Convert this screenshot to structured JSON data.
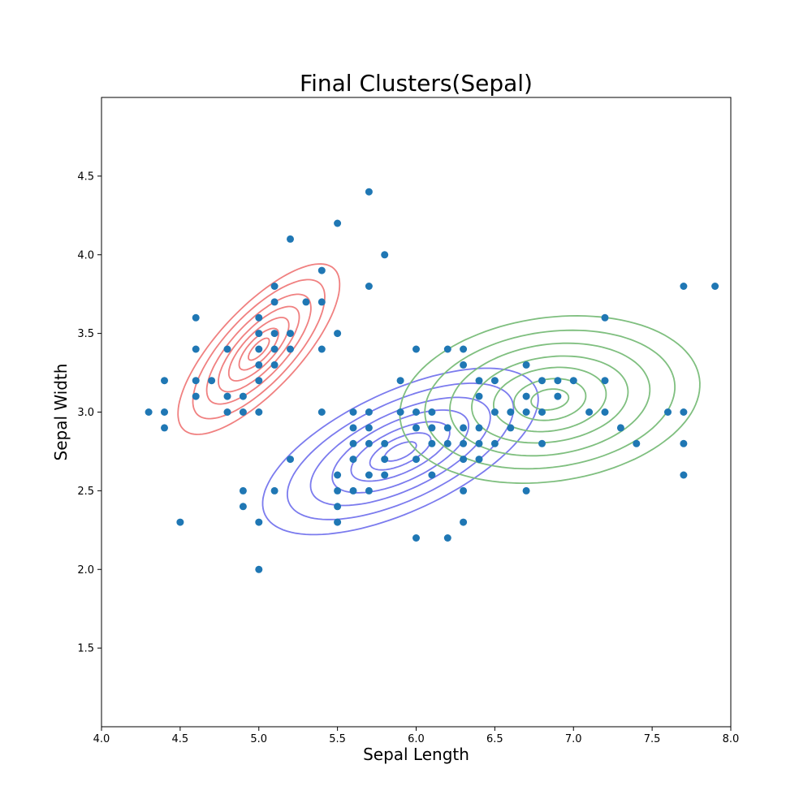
{
  "chart_data": {
    "type": "scatter",
    "title": "Final Clusters(Sepal)",
    "xlabel": "Sepal Length",
    "ylabel": "Sepal Width",
    "xlim": [
      4.0,
      8.0
    ],
    "ylim": [
      1.0,
      5.0
    ],
    "xticks": [
      "4.0",
      "4.5",
      "5.0",
      "5.5",
      "6.0",
      "6.5",
      "7.0",
      "7.5",
      "8.0"
    ],
    "yticks": [
      "1.5",
      "2.0",
      "2.5",
      "3.0",
      "3.5",
      "4.0",
      "4.5"
    ],
    "grid": false,
    "point_color": "#1f77b4",
    "points": [
      [
        4.3,
        3.0
      ],
      [
        4.4,
        3.2
      ],
      [
        4.4,
        3.0
      ],
      [
        4.4,
        2.9
      ],
      [
        4.5,
        2.3
      ],
      [
        4.6,
        3.6
      ],
      [
        4.6,
        3.4
      ],
      [
        4.6,
        3.2
      ],
      [
        4.6,
        3.1
      ],
      [
        4.7,
        3.2
      ],
      [
        4.8,
        3.4
      ],
      [
        4.8,
        3.1
      ],
      [
        4.8,
        3.0
      ],
      [
        4.9,
        3.1
      ],
      [
        4.9,
        3.0
      ],
      [
        4.9,
        2.5
      ],
      [
        4.9,
        2.4
      ],
      [
        5.0,
        3.6
      ],
      [
        5.0,
        3.5
      ],
      [
        5.0,
        3.4
      ],
      [
        5.0,
        3.3
      ],
      [
        5.0,
        3.2
      ],
      [
        5.0,
        3.0
      ],
      [
        5.0,
        2.3
      ],
      [
        5.0,
        2.0
      ],
      [
        5.1,
        3.8
      ],
      [
        5.1,
        3.7
      ],
      [
        5.1,
        3.5
      ],
      [
        5.1,
        3.4
      ],
      [
        5.1,
        3.3
      ],
      [
        5.1,
        2.5
      ],
      [
        5.2,
        4.1
      ],
      [
        5.2,
        3.5
      ],
      [
        5.2,
        3.4
      ],
      [
        5.2,
        2.7
      ],
      [
        5.3,
        3.7
      ],
      [
        5.4,
        3.9
      ],
      [
        5.4,
        3.7
      ],
      [
        5.4,
        3.4
      ],
      [
        5.4,
        3.0
      ],
      [
        5.5,
        4.2
      ],
      [
        5.5,
        3.5
      ],
      [
        5.5,
        2.6
      ],
      [
        5.5,
        2.5
      ],
      [
        5.5,
        2.4
      ],
      [
        5.5,
        2.3
      ],
      [
        5.6,
        3.0
      ],
      [
        5.6,
        2.9
      ],
      [
        5.6,
        2.8
      ],
      [
        5.6,
        2.7
      ],
      [
        5.6,
        2.5
      ],
      [
        5.7,
        4.4
      ],
      [
        5.7,
        3.8
      ],
      [
        5.7,
        3.0
      ],
      [
        5.7,
        2.9
      ],
      [
        5.7,
        2.8
      ],
      [
        5.7,
        2.6
      ],
      [
        5.7,
        2.5
      ],
      [
        5.8,
        4.0
      ],
      [
        5.8,
        2.8
      ],
      [
        5.8,
        2.7
      ],
      [
        5.8,
        2.6
      ],
      [
        5.9,
        3.2
      ],
      [
        5.9,
        3.0
      ],
      [
        6.0,
        3.4
      ],
      [
        6.0,
        3.0
      ],
      [
        6.0,
        2.9
      ],
      [
        6.0,
        2.7
      ],
      [
        6.0,
        2.2
      ],
      [
        6.1,
        3.0
      ],
      [
        6.1,
        2.9
      ],
      [
        6.1,
        2.8
      ],
      [
        6.1,
        2.6
      ],
      [
        6.2,
        3.4
      ],
      [
        6.2,
        2.9
      ],
      [
        6.2,
        2.8
      ],
      [
        6.2,
        2.2
      ],
      [
        6.3,
        3.4
      ],
      [
        6.3,
        3.3
      ],
      [
        6.3,
        2.9
      ],
      [
        6.3,
        2.8
      ],
      [
        6.3,
        2.7
      ],
      [
        6.3,
        2.5
      ],
      [
        6.3,
        2.3
      ],
      [
        6.4,
        3.2
      ],
      [
        6.4,
        3.1
      ],
      [
        6.4,
        2.9
      ],
      [
        6.4,
        2.8
      ],
      [
        6.4,
        2.7
      ],
      [
        6.5,
        3.2
      ],
      [
        6.5,
        3.0
      ],
      [
        6.5,
        2.8
      ],
      [
        6.6,
        3.0
      ],
      [
        6.6,
        2.9
      ],
      [
        6.7,
        3.3
      ],
      [
        6.7,
        3.1
      ],
      [
        6.7,
        3.0
      ],
      [
        6.7,
        2.5
      ],
      [
        6.8,
        3.2
      ],
      [
        6.8,
        3.0
      ],
      [
        6.8,
        2.8
      ],
      [
        6.9,
        3.2
      ],
      [
        6.9,
        3.1
      ],
      [
        7.0,
        3.2
      ],
      [
        7.1,
        3.0
      ],
      [
        7.2,
        3.6
      ],
      [
        7.2,
        3.2
      ],
      [
        7.2,
        3.0
      ],
      [
        7.3,
        2.9
      ],
      [
        7.4,
        2.8
      ],
      [
        7.6,
        3.0
      ],
      [
        7.7,
        3.8
      ],
      [
        7.7,
        3.0
      ],
      [
        7.7,
        2.8
      ],
      [
        7.7,
        2.6
      ],
      [
        7.9,
        3.8
      ]
    ],
    "clusters": [
      {
        "color": "#f08080",
        "center": [
          5.0,
          3.4
        ],
        "radius_x": [
          0.7,
          0.57,
          0.45,
          0.35,
          0.26,
          0.17,
          0.09
        ],
        "radius_y": [
          0.26,
          0.215,
          0.17,
          0.13,
          0.097,
          0.065,
          0.034
        ],
        "rotation_deg": 47
      },
      {
        "color": "#7b7bee",
        "center": [
          5.9,
          2.75
        ],
        "radius_x": [
          0.95,
          0.78,
          0.62,
          0.47,
          0.34,
          0.21,
          0.11
        ],
        "radius_y": [
          0.38,
          0.31,
          0.245,
          0.19,
          0.135,
          0.085,
          0.044
        ],
        "rotation_deg": 25
      },
      {
        "color": "#7fbf7f",
        "center": [
          6.85,
          3.08
        ],
        "radius_x": [
          0.96,
          0.8,
          0.64,
          0.5,
          0.36,
          0.23,
          0.12
        ],
        "radius_y": [
          0.52,
          0.43,
          0.35,
          0.27,
          0.2,
          0.13,
          0.065
        ],
        "rotation_deg": 8
      }
    ]
  }
}
